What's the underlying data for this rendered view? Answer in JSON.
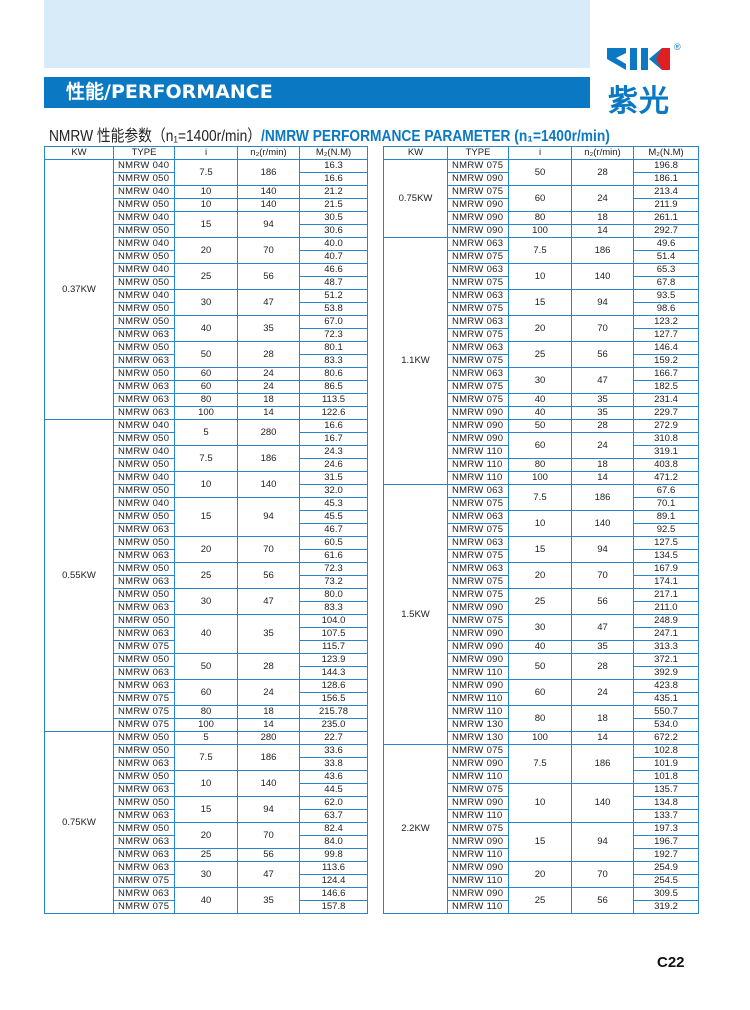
{
  "banner": {
    "title": "性能/PERFORMANCE"
  },
  "logo": {
    "brand": "ZIK",
    "registered": "®",
    "chinese": "紫光",
    "colors": {
      "blue": "#0a78c2",
      "red": "#e02020"
    }
  },
  "subtitle": {
    "cn": "NMRW 性能参数（n₁=1400r/min）",
    "en": "/NMRW PERFORMANCE PARAMETER (n₁=1400r/min)"
  },
  "headers": {
    "kw": "KW",
    "type": "TYPE",
    "i": "i",
    "n2": "n₂(r/min)",
    "m2": "M₂(N.M)"
  },
  "page_number": "C22",
  "accent_color": "#0a78c2",
  "tables": [
    [
      {
        "kw": "0.37KW",
        "blocks": [
          {
            "i": "7.5",
            "n2": "186",
            "rows": [
              [
                "NMRW 040",
                "16.3"
              ],
              [
                "NMRW 050",
                "16.6"
              ]
            ]
          },
          {
            "i": "10",
            "n2": "140",
            "rows": [
              [
                "NMRW 040",
                "21.2"
              ]
            ]
          },
          {
            "i": "10",
            "n2": "140",
            "rows": [
              [
                "NMRW 050",
                "21.5"
              ]
            ]
          },
          {
            "i": "15",
            "n2": "94",
            "rows": [
              [
                "NMRW 040",
                "30.5"
              ],
              [
                "NMRW 050",
                "30.6"
              ]
            ]
          },
          {
            "i": "20",
            "n2": "70",
            "rows": [
              [
                "NMRW 040",
                "40.0"
              ],
              [
                "NMRW 050",
                "40.7"
              ]
            ]
          },
          {
            "i": "25",
            "n2": "56",
            "rows": [
              [
                "NMRW 040",
                "46.6"
              ],
              [
                "NMRW 050",
                "48.7"
              ]
            ]
          },
          {
            "i": "30",
            "n2": "47",
            "rows": [
              [
                "NMRW 040",
                "51.2"
              ],
              [
                "NMRW 050",
                "53.8"
              ]
            ]
          },
          {
            "i": "40",
            "n2": "35",
            "rows": [
              [
                "NMRW 050",
                "67.0"
              ],
              [
                "NMRW 063",
                "72.3"
              ]
            ]
          },
          {
            "i": "50",
            "n2": "28",
            "rows": [
              [
                "NMRW 050",
                "80.1"
              ],
              [
                "NMRW 063",
                "83.3"
              ]
            ]
          },
          {
            "i": "60",
            "n2": "24",
            "rows": [
              [
                "NMRW 050",
                "80.6"
              ]
            ]
          },
          {
            "i": "60",
            "n2": "24",
            "rows": [
              [
                "NMRW 063",
                "86.5"
              ]
            ]
          },
          {
            "i": "80",
            "n2": "18",
            "rows": [
              [
                "NMRW 063",
                "113.5"
              ]
            ]
          },
          {
            "i": "100",
            "n2": "14",
            "rows": [
              [
                "NMRW 063",
                "122.6"
              ]
            ]
          }
        ]
      },
      {
        "kw": "0.55KW",
        "blocks": [
          {
            "i": "5",
            "n2": "280",
            "rows": [
              [
                "NMRW 040",
                "16.6"
              ],
              [
                "NMRW 050",
                "16.7"
              ]
            ]
          },
          {
            "i": "7.5",
            "n2": "186",
            "rows": [
              [
                "NMRW 040",
                "24.3"
              ],
              [
                "NMRW 050",
                "24.6"
              ]
            ]
          },
          {
            "i": "10",
            "n2": "140",
            "rows": [
              [
                "NMRW 040",
                "31.5"
              ],
              [
                "NMRW 050",
                "32.0"
              ]
            ]
          },
          {
            "i": "15",
            "n2": "94",
            "rows": [
              [
                "NMRW 040",
                "45.3"
              ],
              [
                "NMRW 050",
                "45.5"
              ],
              [
                "NMRW 063",
                "46.7"
              ]
            ]
          },
          {
            "i": "20",
            "n2": "70",
            "rows": [
              [
                "NMRW 050",
                "60.5"
              ],
              [
                "NMRW 063",
                "61.6"
              ]
            ]
          },
          {
            "i": "25",
            "n2": "56",
            "rows": [
              [
                "NMRW 050",
                "72.3"
              ],
              [
                "NMRW 063",
                "73.2"
              ]
            ]
          },
          {
            "i": "30",
            "n2": "47",
            "rows": [
              [
                "NMRW 050",
                "80.0"
              ],
              [
                "NMRW 063",
                "83.3"
              ]
            ]
          },
          {
            "i": "40",
            "n2": "35",
            "rows": [
              [
                "NMRW 050",
                "104.0"
              ],
              [
                "NMRW 063",
                "107.5"
              ],
              [
                "NMRW 075",
                "115.7"
              ]
            ]
          },
          {
            "i": "50",
            "n2": "28",
            "rows": [
              [
                "NMRW 050",
                "123.9"
              ],
              [
                "NMRW 063",
                "144.3"
              ]
            ]
          },
          {
            "i": "60",
            "n2": "24",
            "rows": [
              [
                "NMRW 063",
                "128.6"
              ],
              [
                "NMRW 075",
                "156.5"
              ]
            ]
          },
          {
            "i": "80",
            "n2": "18",
            "rows": [
              [
                "NMRW 075",
                "215.78"
              ]
            ]
          },
          {
            "i": "100",
            "n2": "14",
            "rows": [
              [
                "NMRW 075",
                "235.0"
              ]
            ]
          }
        ]
      },
      {
        "kw": "0.75KW",
        "blocks": [
          {
            "i": "5",
            "n2": "280",
            "rows": [
              [
                "NMRW 050",
                "22.7"
              ]
            ]
          },
          {
            "i": "7.5",
            "n2": "186",
            "rows": [
              [
                "NMRW 050",
                "33.6"
              ],
              [
                "NMRW 063",
                "33.8"
              ]
            ]
          },
          {
            "i": "10",
            "n2": "140",
            "rows": [
              [
                "NMRW 050",
                "43.6"
              ],
              [
                "NMRW 063",
                "44.5"
              ]
            ]
          },
          {
            "i": "15",
            "n2": "94",
            "rows": [
              [
                "NMRW 050",
                "62.0"
              ],
              [
                "NMRW 063",
                "63.7"
              ]
            ]
          },
          {
            "i": "20",
            "n2": "70",
            "rows": [
              [
                "NMRW 050",
                "82.4"
              ],
              [
                "NMRW 063",
                "84.0"
              ]
            ]
          },
          {
            "i": "25",
            "n2": "56",
            "rows": [
              [
                "NMRW 063",
                "99.8"
              ]
            ]
          },
          {
            "i": "30",
            "n2": "47",
            "rows": [
              [
                "NMRW 063",
                "113.6"
              ],
              [
                "NMRW 075",
                "124.4"
              ]
            ]
          },
          {
            "i": "40",
            "n2": "35",
            "rows": [
              [
                "NMRW 063",
                "146.6"
              ],
              [
                "NMRW 075",
                "157.8"
              ]
            ]
          }
        ]
      }
    ],
    [
      {
        "kw": "0.75KW",
        "blocks": [
          {
            "i": "50",
            "n2": "28",
            "rows": [
              [
                "NMRW 075",
                "196.8"
              ],
              [
                "NMRW 090",
                "186.1"
              ]
            ]
          },
          {
            "i": "60",
            "n2": "24",
            "rows": [
              [
                "NMRW 075",
                "213.4"
              ],
              [
                "NMRW 090",
                "211.9"
              ]
            ]
          },
          {
            "i": "80",
            "n2": "18",
            "rows": [
              [
                "NMRW 090",
                "261.1"
              ]
            ]
          },
          {
            "i": "100",
            "n2": "14",
            "rows": [
              [
                "NMRW 090",
                "292.7"
              ]
            ]
          }
        ]
      },
      {
        "kw": "1.1KW",
        "blocks": [
          {
            "i": "7.5",
            "n2": "186",
            "rows": [
              [
                "NMRW 063",
                "49.6"
              ],
              [
                "NMRW 075",
                "51.4"
              ]
            ]
          },
          {
            "i": "10",
            "n2": "140",
            "rows": [
              [
                "NMRW 063",
                "65.3"
              ],
              [
                "NMRW 075",
                "67.8"
              ]
            ]
          },
          {
            "i": "15",
            "n2": "94",
            "rows": [
              [
                "NMRW 063",
                "93.5"
              ],
              [
                "NMRW 075",
                "98.6"
              ]
            ]
          },
          {
            "i": "20",
            "n2": "70",
            "rows": [
              [
                "NMRW 063",
                "123.2"
              ],
              [
                "NMRW 075",
                "127.7"
              ]
            ]
          },
          {
            "i": "25",
            "n2": "56",
            "rows": [
              [
                "NMRW 063",
                "146.4"
              ],
              [
                "NMRW 075",
                "159.2"
              ]
            ]
          },
          {
            "i": "30",
            "n2": "47",
            "rows": [
              [
                "NMRW 063",
                "166.7"
              ],
              [
                "NMRW 075",
                "182.5"
              ]
            ]
          },
          {
            "i": "40",
            "n2": "35",
            "rows": [
              [
                "NMRW 075",
                "231.4"
              ]
            ]
          },
          {
            "i": "40",
            "n2": "35",
            "rows": [
              [
                "NMRW 090",
                "229.7"
              ]
            ]
          },
          {
            "i": "50",
            "n2": "28",
            "rows": [
              [
                "NMRW 090",
                "272.9"
              ]
            ]
          },
          {
            "i": "60",
            "n2": "24",
            "rows": [
              [
                "NMRW 090",
                "310.8"
              ],
              [
                "NMRW 110",
                "319.1"
              ]
            ]
          },
          {
            "i": "80",
            "n2": "18",
            "rows": [
              [
                "NMRW 110",
                "403.8"
              ]
            ]
          },
          {
            "i": "100",
            "n2": "14",
            "rows": [
              [
                "NMRW 110",
                "471.2"
              ]
            ]
          }
        ]
      },
      {
        "kw": "1.5KW",
        "blocks": [
          {
            "i": "7.5",
            "n2": "186",
            "rows": [
              [
                "NMRW 063",
                "67.6"
              ],
              [
                "NMRW 075",
                "70.1"
              ]
            ]
          },
          {
            "i": "10",
            "n2": "140",
            "rows": [
              [
                "NMRW 063",
                "89.1"
              ],
              [
                "NMRW 075",
                "92.5"
              ]
            ]
          },
          {
            "i": "15",
            "n2": "94",
            "rows": [
              [
                "NMRW 063",
                "127.5"
              ],
              [
                "NMRW 075",
                "134.5"
              ]
            ]
          },
          {
            "i": "20",
            "n2": "70",
            "rows": [
              [
                "NMRW 063",
                "167.9"
              ],
              [
                "NMRW 075",
                "174.1"
              ]
            ]
          },
          {
            "i": "25",
            "n2": "56",
            "rows": [
              [
                "NMRW 075",
                "217.1"
              ],
              [
                "NMRW 090",
                "211.0"
              ]
            ]
          },
          {
            "i": "30",
            "n2": "47",
            "rows": [
              [
                "NMRW 075",
                "248.9"
              ],
              [
                "NMRW 090",
                "247.1"
              ]
            ]
          },
          {
            "i": "40",
            "n2": "35",
            "rows": [
              [
                "NMRW 090",
                "313.3"
              ]
            ]
          },
          {
            "i": "50",
            "n2": "28",
            "rows": [
              [
                "NMRW 090",
                "372.1"
              ],
              [
                "NMRW 110",
                "392.9"
              ]
            ]
          },
          {
            "i": "60",
            "n2": "24",
            "rows": [
              [
                "NMRW 090",
                "423.8"
              ],
              [
                "NMRW 110",
                "435.1"
              ]
            ]
          },
          {
            "i": "80",
            "n2": "18",
            "rows": [
              [
                "NMRW 110",
                "550.7"
              ],
              [
                "NMRW 130",
                "534.0"
              ]
            ]
          },
          {
            "i": "100",
            "n2": "14",
            "rows": [
              [
                "NMRW 130",
                "672.2"
              ]
            ]
          }
        ]
      },
      {
        "kw": "2.2KW",
        "blocks": [
          {
            "i": "7.5",
            "n2": "186",
            "rows": [
              [
                "NMRW 075",
                "102.8"
              ],
              [
                "NMRW 090",
                "101.9"
              ],
              [
                "NMRW 110",
                "101.8"
              ]
            ]
          },
          {
            "i": "10",
            "n2": "140",
            "rows": [
              [
                "NMRW 075",
                "135.7"
              ],
              [
                "NMRW 090",
                "134.8"
              ],
              [
                "NMRW 110",
                "133.7"
              ]
            ]
          },
          {
            "i": "15",
            "n2": "94",
            "rows": [
              [
                "NMRW 075",
                "197.3"
              ],
              [
                "NMRW 090",
                "196.7"
              ],
              [
                "NMRW 110",
                "192.7"
              ]
            ]
          },
          {
            "i": "20",
            "n2": "70",
            "rows": [
              [
                "NMRW 090",
                "254.9"
              ],
              [
                "NMRW 110",
                "254.5"
              ]
            ]
          },
          {
            "i": "25",
            "n2": "56",
            "rows": [
              [
                "NMRW 090",
                "309.5"
              ],
              [
                "NMRW 110",
                "319.2"
              ]
            ]
          }
        ]
      }
    ]
  ]
}
